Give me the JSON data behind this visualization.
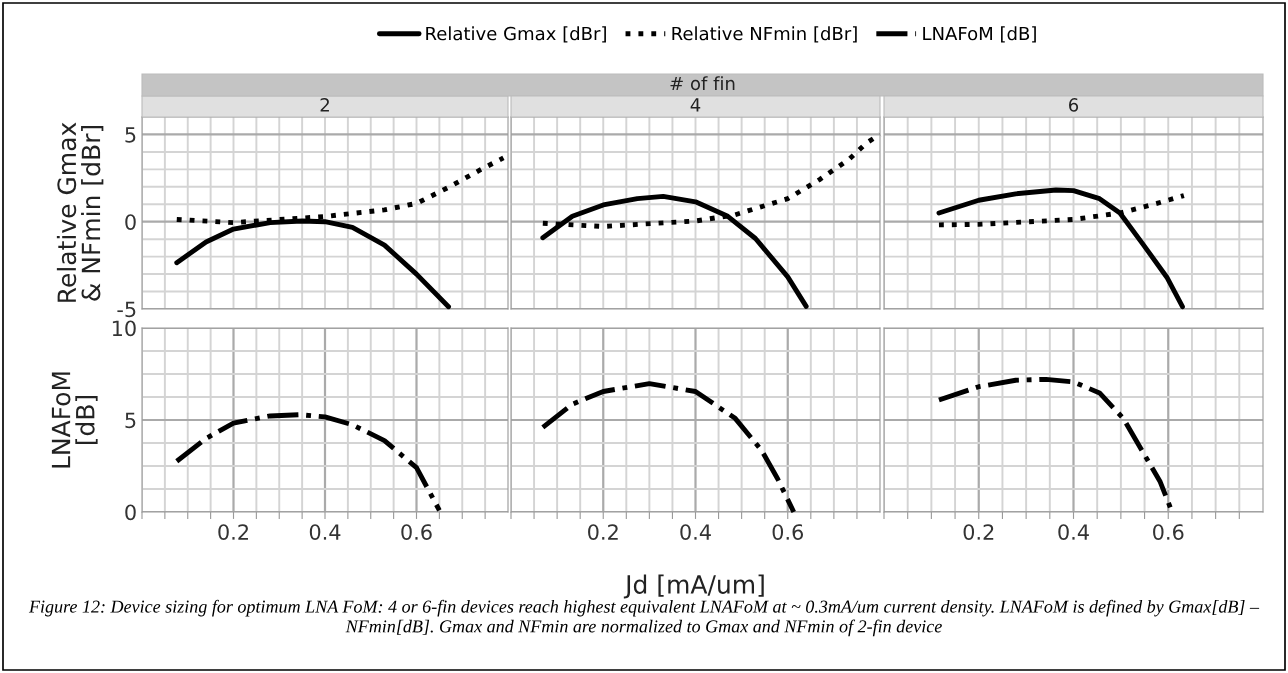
{
  "chart_data": [
    {
      "type": "line",
      "title": "2",
      "annotations": [
        "# of fin"
      ],
      "ylabel": "Relative Gmax\n& NFmin [dBr]",
      "xlim": [
        0,
        0.8
      ],
      "ylim": [
        -5,
        6
      ],
      "tick_labels": "y",
      "grid": true,
      "legend": "top",
      "xticks": [
        {
          "value": 0,
          "label": null
        },
        {
          "value": 0.05,
          "label": null
        },
        {
          "value": 0.1,
          "label": null
        },
        {
          "value": 0.15,
          "label": null
        },
        {
          "value": 0.2,
          "label": null
        },
        {
          "value": 0.25,
          "label": null
        },
        {
          "value": 0.3,
          "label": null
        },
        {
          "value": 0.35,
          "label": null
        },
        {
          "value": 0.4,
          "label": null
        },
        {
          "value": 0.45,
          "label": null
        },
        {
          "value": 0.5,
          "label": null
        },
        {
          "value": 0.55,
          "label": null
        },
        {
          "value": 0.6,
          "label": null
        },
        {
          "value": 0.65,
          "label": null
        },
        {
          "value": 0.7,
          "label": null
        },
        {
          "value": 0.75,
          "label": null
        }
      ],
      "yticks": [
        -5,
        {
          "value": -4,
          "label": null
        },
        {
          "value": -3,
          "label": null
        },
        {
          "value": -2,
          "label": null
        },
        {
          "value": -1,
          "label": null
        },
        0,
        {
          "value": 1,
          "label": null
        },
        {
          "value": 2,
          "label": null
        },
        {
          "value": 3,
          "label": null
        },
        {
          "value": 4,
          "label": null
        },
        5
      ],
      "series": [
        {
          "name": "Relative Gmax [dBr]",
          "color": "#000000",
          "line_style": "solid",
          "x": [
            0.076,
            0.14,
            0.2,
            0.28,
            0.35,
            0.4,
            0.46,
            0.53,
            0.6,
            0.67
          ],
          "values": [
            -2.35,
            -1.16,
            -0.42,
            -0.05,
            0.04,
            0.0,
            -0.33,
            -1.34,
            -3.0,
            -4.87
          ]
        },
        {
          "name": "Relative NFmin [dBr]",
          "color": "#000000",
          "line_style": "dotted",
          "x": [
            0.076,
            0.2,
            0.4,
            0.53,
            0.6,
            0.67,
            0.74,
            0.79
          ],
          "values": [
            0.13,
            -0.05,
            0.3,
            0.68,
            1.05,
            1.97,
            2.98,
            3.66
          ]
        }
      ]
    },
    {
      "type": "line",
      "title": "4",
      "xlim": [
        0,
        0.8
      ],
      "ylim": [
        -5,
        6
      ],
      "tick_labels": false,
      "grid": true,
      "xticks": [
        {
          "value": 0,
          "label": null
        },
        {
          "value": 0.05,
          "label": null
        },
        {
          "value": 0.1,
          "label": null
        },
        {
          "value": 0.15,
          "label": null
        },
        {
          "value": 0.2,
          "label": null
        },
        {
          "value": 0.25,
          "label": null
        },
        {
          "value": 0.3,
          "label": null
        },
        {
          "value": 0.35,
          "label": null
        },
        {
          "value": 0.4,
          "label": null
        },
        {
          "value": 0.45,
          "label": null
        },
        {
          "value": 0.5,
          "label": null
        },
        {
          "value": 0.55,
          "label": null
        },
        {
          "value": 0.6,
          "label": null
        },
        {
          "value": 0.65,
          "label": null
        },
        {
          "value": 0.7,
          "label": null
        },
        {
          "value": 0.75,
          "label": null
        }
      ],
      "yticks": [
        -5,
        {
          "value": -4,
          "label": null
        },
        {
          "value": -3,
          "label": null
        },
        {
          "value": -2,
          "label": null
        },
        {
          "value": -1,
          "label": null
        },
        0,
        {
          "value": 1,
          "label": null
        },
        {
          "value": 2,
          "label": null
        },
        {
          "value": 3,
          "label": null
        },
        {
          "value": 4,
          "label": null
        },
        5
      ],
      "series": [
        {
          "color": "#000000",
          "line_style": "solid",
          "x": [
            0.069,
            0.133,
            0.2,
            0.274,
            0.33,
            0.4,
            0.47,
            0.53,
            0.6,
            0.64
          ],
          "values": [
            -0.92,
            0.31,
            0.96,
            1.32,
            1.45,
            1.14,
            0.31,
            -0.96,
            -3.16,
            -4.85
          ]
        },
        {
          "color": "#000000",
          "line_style": "dotted",
          "x": [
            0.069,
            0.2,
            0.4,
            0.486,
            0.6,
            0.67,
            0.734,
            0.77,
            0.8
          ],
          "values": [
            -0.09,
            -0.27,
            0.04,
            0.4,
            1.32,
            2.43,
            3.6,
            4.5,
            5.0
          ]
        }
      ]
    },
    {
      "type": "line",
      "title": "6",
      "xlim": [
        0,
        0.8
      ],
      "ylim": [
        -5,
        6
      ],
      "tick_labels": false,
      "grid": true,
      "xticks": [
        {
          "value": 0,
          "label": null
        },
        {
          "value": 0.05,
          "label": null
        },
        {
          "value": 0.1,
          "label": null
        },
        {
          "value": 0.15,
          "label": null
        },
        {
          "value": 0.2,
          "label": null
        },
        {
          "value": 0.25,
          "label": null
        },
        {
          "value": 0.3,
          "label": null
        },
        {
          "value": 0.35,
          "label": null
        },
        {
          "value": 0.4,
          "label": null
        },
        {
          "value": 0.45,
          "label": null
        },
        {
          "value": 0.5,
          "label": null
        },
        {
          "value": 0.55,
          "label": null
        },
        {
          "value": 0.6,
          "label": null
        },
        {
          "value": 0.65,
          "label": null
        },
        {
          "value": 0.7,
          "label": null
        },
        {
          "value": 0.75,
          "label": null
        }
      ],
      "yticks": [
        -5,
        {
          "value": -4,
          "label": null
        },
        {
          "value": -3,
          "label": null
        },
        {
          "value": -2,
          "label": null
        },
        {
          "value": -1,
          "label": null
        },
        0,
        {
          "value": 1,
          "label": null
        },
        {
          "value": 2,
          "label": null
        },
        {
          "value": 3,
          "label": null
        },
        {
          "value": 4,
          "label": null
        },
        5
      ],
      "series": [
        {
          "color": "#000000",
          "line_style": "solid",
          "x": [
            0.116,
            0.2,
            0.278,
            0.363,
            0.4,
            0.455,
            0.498,
            0.548,
            0.597,
            0.63
          ],
          "values": [
            0.5,
            1.23,
            1.6,
            1.82,
            1.78,
            1.32,
            0.5,
            -1.34,
            -3.18,
            -4.87
          ]
        },
        {
          "color": "#000000",
          "line_style": "dotted",
          "x": [
            0.116,
            0.2,
            0.4,
            0.498,
            0.576,
            0.633
          ],
          "values": [
            -0.18,
            -0.15,
            0.13,
            0.5,
            1.05,
            1.5
          ]
        }
      ]
    },
    {
      "type": "line",
      "ylabel": "LNAFoM\n[dB]",
      "xlim": [
        0,
        0.8
      ],
      "ylim": [
        0,
        10
      ],
      "grid": true,
      "legend": "top",
      "xticks": [
        {
          "value": 0,
          "label": null
        },
        {
          "value": 0.05,
          "label": null
        },
        {
          "value": 0.1,
          "label": null
        },
        {
          "value": 0.15,
          "label": null
        },
        0.2,
        {
          "value": 0.25,
          "label": null
        },
        {
          "value": 0.3,
          "label": null
        },
        {
          "value": 0.35,
          "label": null
        },
        0.4,
        {
          "value": 0.45,
          "label": null
        },
        {
          "value": 0.5,
          "label": null
        },
        {
          "value": 0.55,
          "label": null
        },
        0.6,
        {
          "value": 0.65,
          "label": null
        },
        {
          "value": 0.7,
          "label": null
        },
        {
          "value": 0.75,
          "label": null
        }
      ],
      "yticks": [
        0,
        {
          "value": 1.25,
          "label": null
        },
        {
          "value": 2.5,
          "label": null
        },
        {
          "value": 3.75,
          "label": null
        },
        5,
        {
          "value": 6.25,
          "label": null
        },
        {
          "value": 7.5,
          "label": null
        },
        {
          "value": 8.75,
          "label": null
        },
        10
      ],
      "series": [
        {
          "name": "LNAFoM [dB]",
          "color": "#000000",
          "line_style": "dashdot",
          "x": [
            0.076,
            0.14,
            0.2,
            0.28,
            0.345,
            0.4,
            0.46,
            0.53,
            0.6,
            0.65
          ],
          "values": [
            2.76,
            4.0,
            4.83,
            5.22,
            5.29,
            5.17,
            4.74,
            3.88,
            2.41,
            0.09
          ]
        }
      ]
    },
    {
      "type": "line",
      "xlabel": "Jd [mA/um]",
      "annotations": [
        "Figure 12: Device sizing for optimum LNA FoM: 4 or 6-fin devices reach highest equivalent LNAFoM at ~ 0.3mA/um current density. LNAFoM is defined by Gmax[dB] – NFmin[dB]. Gmax and NFmin are normalized to Gmax and NFmin of 2-fin device"
      ],
      "xlim": [
        0,
        0.8
      ],
      "ylim": [
        0,
        10
      ],
      "tick_labels": "x",
      "grid": true,
      "xticks": [
        {
          "value": 0,
          "label": null
        },
        {
          "value": 0.05,
          "label": null
        },
        {
          "value": 0.1,
          "label": null
        },
        {
          "value": 0.15,
          "label": null
        },
        0.2,
        {
          "value": 0.25,
          "label": null
        },
        {
          "value": 0.3,
          "label": null
        },
        {
          "value": 0.35,
          "label": null
        },
        0.4,
        {
          "value": 0.45,
          "label": null
        },
        {
          "value": 0.5,
          "label": null
        },
        {
          "value": 0.55,
          "label": null
        },
        0.6,
        {
          "value": 0.65,
          "label": null
        },
        {
          "value": 0.7,
          "label": null
        },
        {
          "value": 0.75,
          "label": null
        }
      ],
      "yticks": [
        0,
        {
          "value": 1.25,
          "label": null
        },
        {
          "value": 2.5,
          "label": null
        },
        {
          "value": 3.75,
          "label": null
        },
        5,
        {
          "value": 6.25,
          "label": null
        },
        {
          "value": 7.5,
          "label": null
        },
        {
          "value": 8.75,
          "label": null
        },
        10
      ],
      "series": [
        {
          "color": "#000000",
          "line_style": "dashdot",
          "x": [
            0.069,
            0.133,
            0.2,
            0.3,
            0.4,
            0.486,
            0.543,
            0.578,
            0.613
          ],
          "values": [
            4.6,
            5.86,
            6.55,
            6.98,
            6.55,
            5.09,
            3.36,
            1.81,
            0.0
          ]
        }
      ]
    },
    {
      "type": "line",
      "xlim": [
        0,
        0.8
      ],
      "ylim": [
        0,
        10
      ],
      "tick_labels": "x",
      "grid": true,
      "xticks": [
        {
          "value": 0,
          "label": null
        },
        {
          "value": 0.05,
          "label": null
        },
        {
          "value": 0.1,
          "label": null
        },
        {
          "value": 0.15,
          "label": null
        },
        0.2,
        {
          "value": 0.25,
          "label": null
        },
        {
          "value": 0.3,
          "label": null
        },
        {
          "value": 0.35,
          "label": null
        },
        0.4,
        {
          "value": 0.45,
          "label": null
        },
        {
          "value": 0.5,
          "label": null
        },
        {
          "value": 0.55,
          "label": null
        },
        0.6,
        {
          "value": 0.65,
          "label": null
        },
        {
          "value": 0.7,
          "label": null
        },
        {
          "value": 0.75,
          "label": null
        }
      ],
      "yticks": [
        0,
        {
          "value": 1.25,
          "label": null
        },
        {
          "value": 2.5,
          "label": null
        },
        {
          "value": 3.75,
          "label": null
        },
        5,
        {
          "value": 6.25,
          "label": null
        },
        {
          "value": 7.5,
          "label": null
        },
        {
          "value": 8.75,
          "label": null
        },
        10
      ],
      "series": [
        {
          "color": "#000000",
          "line_style": "dashdot",
          "x": [
            0.116,
            0.2,
            0.278,
            0.342,
            0.4,
            0.455,
            0.505,
            0.548,
            0.583,
            0.608
          ],
          "values": [
            6.09,
            6.81,
            7.16,
            7.21,
            7.07,
            6.47,
            5.09,
            3.19,
            1.64,
            0.0
          ]
        }
      ]
    }
  ]
}
